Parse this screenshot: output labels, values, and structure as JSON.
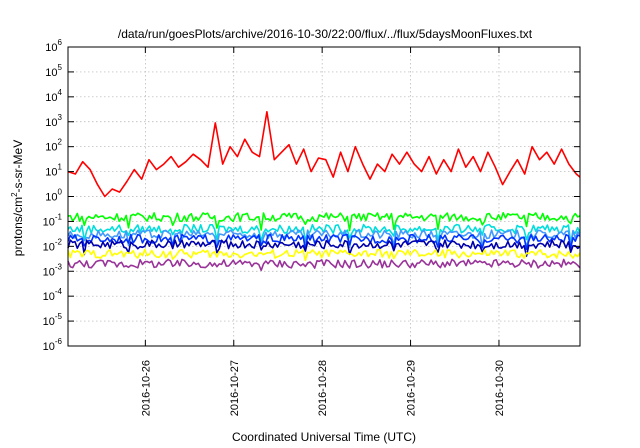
{
  "chart_data": {
    "type": "line",
    "title": "/data/run/goesPlots/archive/2016-10-30/22:00/flux/../flux/5daysMoonFluxes.txt",
    "xlabel": "Coordinated Universal Time (UTC)",
    "ylabel_parts": [
      "protons/cm",
      "2",
      "-s-sr-MeV"
    ],
    "y_scale": "log",
    "ylim": [
      1e-06,
      1000000.0
    ],
    "xlim": [
      "2016-10-25T03:00",
      "2016-10-30T22:00"
    ],
    "grid": true,
    "x_ticks": [
      "2016-10-26",
      "2016-10-27",
      "2016-10-28",
      "2016-10-29",
      "2016-10-30"
    ],
    "y_ticks": [
      {
        "value": 1e-06,
        "base": "10",
        "exp": "-6"
      },
      {
        "value": 1e-05,
        "base": "10",
        "exp": "-5"
      },
      {
        "value": 0.0001,
        "base": "10",
        "exp": "-4"
      },
      {
        "value": 0.001,
        "base": "10",
        "exp": "-3"
      },
      {
        "value": 0.01,
        "base": "10",
        "exp": "-2"
      },
      {
        "value": 0.1,
        "base": "10",
        "exp": "-1"
      },
      {
        "value": 1,
        "base": "10",
        "exp": "0"
      },
      {
        "value": 10,
        "base": "10",
        "exp": "1"
      },
      {
        "value": 100,
        "base": "10",
        "exp": "2"
      },
      {
        "value": 1000,
        "base": "10",
        "exp": "3"
      },
      {
        "value": 10000,
        "base": "10",
        "exp": "4"
      },
      {
        "value": 100000,
        "base": "10",
        "exp": "5"
      },
      {
        "value": 1000000,
        "base": "10",
        "exp": "6"
      }
    ],
    "series": [
      {
        "color": "#ff0000",
        "points": [
          [
            "2016-10-25T03:00",
            10
          ],
          [
            "2016-10-25T05:00",
            8
          ],
          [
            "2016-10-25T07:00",
            25
          ],
          [
            "2016-10-25T09:00",
            12
          ],
          [
            "2016-10-25T11:00",
            3
          ],
          [
            "2016-10-25T13:00",
            1
          ],
          [
            "2016-10-25T15:00",
            2
          ],
          [
            "2016-10-25T17:00",
            1.5
          ],
          [
            "2016-10-25T19:00",
            4
          ],
          [
            "2016-10-25T21:00",
            12
          ],
          [
            "2016-10-25T23:00",
            5
          ],
          [
            "2016-10-26T01:00",
            30
          ],
          [
            "2016-10-26T03:00",
            12
          ],
          [
            "2016-10-26T05:00",
            20
          ],
          [
            "2016-10-26T07:00",
            40
          ],
          [
            "2016-10-26T09:00",
            15
          ],
          [
            "2016-10-26T11:00",
            25
          ],
          [
            "2016-10-26T13:00",
            50
          ],
          [
            "2016-10-26T15:00",
            30
          ],
          [
            "2016-10-26T17:00",
            15
          ],
          [
            "2016-10-26T19:00",
            900
          ],
          [
            "2016-10-26T21:00",
            20
          ],
          [
            "2016-10-26T23:00",
            100
          ],
          [
            "2016-10-27T01:00",
            40
          ],
          [
            "2016-10-27T03:00",
            200
          ],
          [
            "2016-10-27T05:00",
            60
          ],
          [
            "2016-10-27T07:00",
            40
          ],
          [
            "2016-10-27T09:00",
            2500
          ],
          [
            "2016-10-27T11:00",
            30
          ],
          [
            "2016-10-27T13:00",
            60
          ],
          [
            "2016-10-27T15:00",
            120
          ],
          [
            "2016-10-27T17:00",
            20
          ],
          [
            "2016-10-27T19:00",
            80
          ],
          [
            "2016-10-27T21:00",
            10
          ],
          [
            "2016-10-27T23:00",
            35
          ],
          [
            "2016-10-28T01:00",
            30
          ],
          [
            "2016-10-28T03:00",
            6
          ],
          [
            "2016-10-28T05:00",
            60
          ],
          [
            "2016-10-28T07:00",
            10
          ],
          [
            "2016-10-28T09:00",
            100
          ],
          [
            "2016-10-28T11:00",
            20
          ],
          [
            "2016-10-28T13:00",
            5
          ],
          [
            "2016-10-28T15:00",
            20
          ],
          [
            "2016-10-28T17:00",
            10
          ],
          [
            "2016-10-28T19:00",
            50
          ],
          [
            "2016-10-28T21:00",
            20
          ],
          [
            "2016-10-28T23:00",
            60
          ],
          [
            "2016-10-29T01:00",
            20
          ],
          [
            "2016-10-29T03:00",
            10
          ],
          [
            "2016-10-29T05:00",
            40
          ],
          [
            "2016-10-29T07:00",
            8
          ],
          [
            "2016-10-29T09:00",
            30
          ],
          [
            "2016-10-29T11:00",
            10
          ],
          [
            "2016-10-29T13:00",
            80
          ],
          [
            "2016-10-29T15:00",
            15
          ],
          [
            "2016-10-29T17:00",
            40
          ],
          [
            "2016-10-29T19:00",
            10
          ],
          [
            "2016-10-29T21:00",
            60
          ],
          [
            "2016-10-29T23:00",
            15
          ],
          [
            "2016-10-30T01:00",
            3
          ],
          [
            "2016-10-30T03:00",
            10
          ],
          [
            "2016-10-30T05:00",
            30
          ],
          [
            "2016-10-30T07:00",
            8
          ],
          [
            "2016-10-30T09:00",
            100
          ],
          [
            "2016-10-30T11:00",
            30
          ],
          [
            "2016-10-30T13:00",
            60
          ],
          [
            "2016-10-30T15:00",
            20
          ],
          [
            "2016-10-30T17:00",
            80
          ],
          [
            "2016-10-30T19:00",
            20
          ],
          [
            "2016-10-30T21:00",
            8
          ],
          [
            "2016-10-30T22:00",
            6
          ]
        ]
      },
      {
        "color": "#00ff00",
        "level": 0.15,
        "dip": 0.4
      },
      {
        "color": "#00dddd",
        "level": 0.05,
        "dip": 0.4
      },
      {
        "color": "#4499ff",
        "level": 0.03,
        "dip": 0.4
      },
      {
        "color": "#0033ff",
        "level": 0.02,
        "dip": 0.5
      },
      {
        "color": "#0000aa",
        "level": 0.012,
        "dip": 0.5
      },
      {
        "color": "#ffff00",
        "level": 0.005,
        "dip": 0.8
      },
      {
        "color": "#993399",
        "level": 0.002,
        "dip": 0.8
      }
    ]
  }
}
